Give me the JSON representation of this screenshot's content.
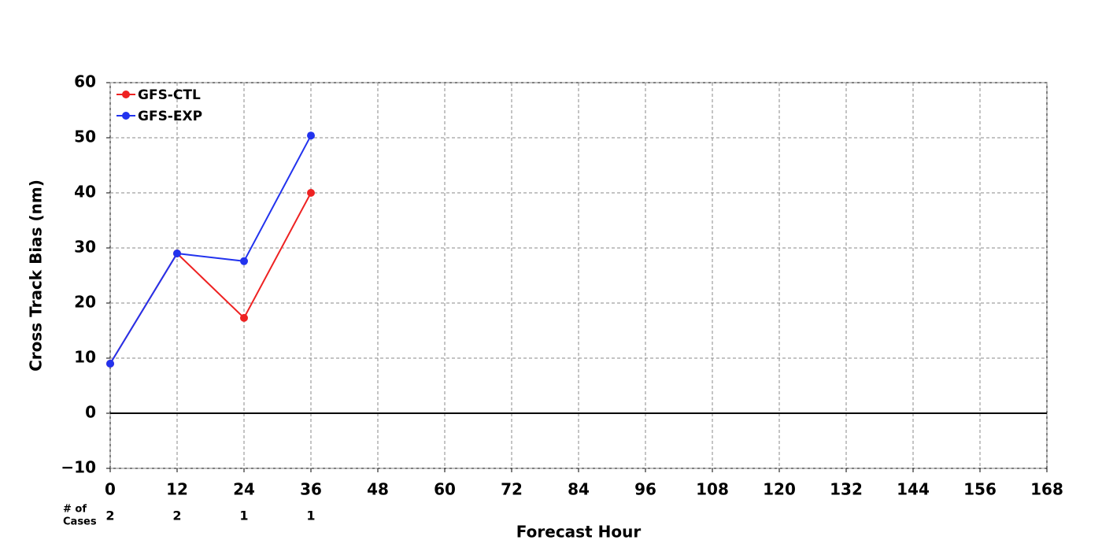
{
  "chart_data": {
    "type": "line",
    "x_label": "Forecast Hour",
    "y_label": "Cross Track Bias (nm)",
    "x": [
      0,
      12,
      24,
      36
    ],
    "series": [
      {
        "name": "GFS-CTL",
        "color": "#ee2222",
        "values": [
          9,
          29,
          17.3,
          40
        ]
      },
      {
        "name": "GFS-EXP",
        "color": "#2233ee",
        "values": [
          9,
          29,
          27.6,
          50.4
        ]
      }
    ],
    "xlim": [
      0,
      168
    ],
    "xticks": [
      0,
      12,
      24,
      36,
      48,
      60,
      72,
      84,
      96,
      108,
      120,
      132,
      144,
      156,
      168
    ],
    "ylim": [
      -10,
      60
    ],
    "yticks": [
      {
        "value": -10,
        "label": "−10"
      },
      0,
      10,
      20,
      30,
      40,
      50,
      60
    ],
    "hline": 0,
    "grid": true,
    "legend": "upper left",
    "cases_label": [
      "# of",
      "Cases"
    ],
    "cases": [
      2,
      2,
      1,
      1
    ]
  }
}
